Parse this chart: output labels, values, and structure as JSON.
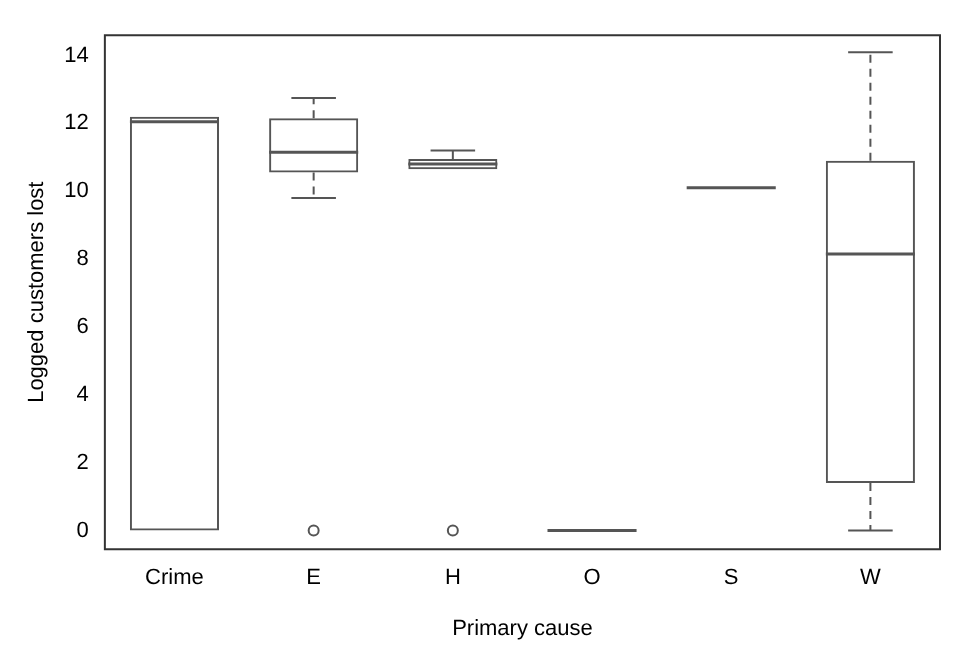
{
  "chart_data": {
    "type": "box",
    "xlabel": "Primary cause",
    "ylabel": "Logged customers lost",
    "categories": [
      "Crime",
      "E",
      "H",
      "O",
      "S",
      "W"
    ],
    "boxes": [
      {
        "low": 0,
        "q1": 0,
        "median": 12.05,
        "q3": 12.2,
        "high": 12.2
      },
      {
        "low": 9.8,
        "q1": 10.55,
        "median": 11.15,
        "q3": 12.15,
        "high": 12.75,
        "outliers": [
          0
        ]
      },
      {
        "low": 10.65,
        "q1": 10.65,
        "median": 10.8,
        "q3": 10.95,
        "high": 11.2,
        "outliers": [
          0
        ]
      },
      {
        "low": 0,
        "q1": 0,
        "median": 0,
        "q3": 0,
        "high": 0
      },
      {
        "low": 10.1,
        "q1": 10.1,
        "median": 10.1,
        "q3": 10.1,
        "high": 10.1
      },
      {
        "low": 0,
        "q1": 1.4,
        "median": 8.15,
        "q3": 10.9,
        "high": 14.1
      }
    ],
    "color": "#555555",
    "ylim": [
      -0.55,
      14.6
    ],
    "yticks": [
      0,
      2,
      4,
      6,
      8,
      10,
      12,
      14
    ],
    "grid": false,
    "legend": false
  }
}
